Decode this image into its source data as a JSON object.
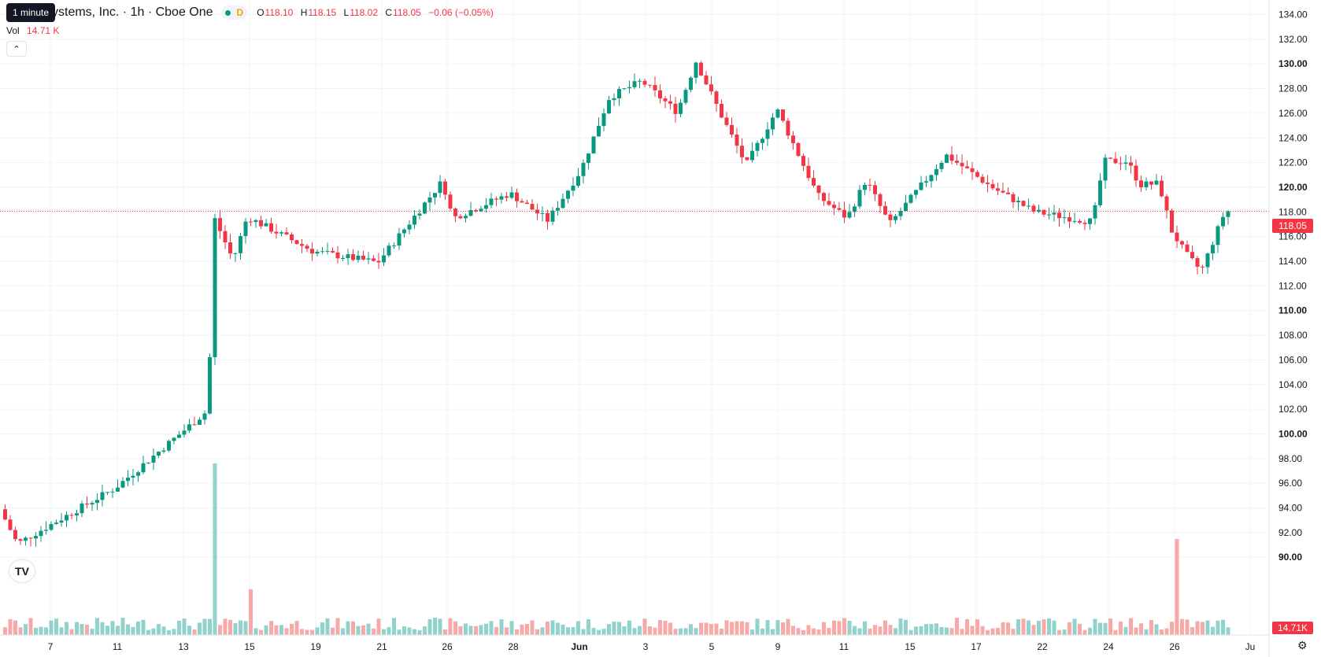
{
  "header": {
    "title": "ystems, Inc. · 1h · Cboe One",
    "tooltip": "1 minute",
    "badge_letter": "D",
    "ohlc": {
      "o_label": "O",
      "o_value": "118.10",
      "h_label": "H",
      "h_value": "118.15",
      "l_label": "L",
      "l_value": "118.02",
      "c_label": "C",
      "c_value": "118.05",
      "change": "−0.06 (−0.05%)"
    },
    "vol_label": "Vol",
    "vol_value": "14.71 K"
  },
  "colors": {
    "up": "#089981",
    "down": "#f23645",
    "up_vol": "#92d2cc",
    "down_vol": "#f7a9a7",
    "grid": "#f0f3fa",
    "text": "#131722"
  },
  "icons": {
    "collapse": "chevron-up-icon",
    "logo": "tradingview-logo-icon",
    "settings": "gear-icon"
  },
  "chart_data": {
    "type": "candlestick",
    "price_axis": {
      "ticks": [
        "134.00",
        "132.00",
        "130.00",
        "128.00",
        "126.00",
        "124.00",
        "122.00",
        "120.00",
        "118.00",
        "116.00",
        "114.00",
        "112.00",
        "110.00",
        "108.00",
        "106.00",
        "104.00",
        "102.00",
        "100.00",
        "98.00",
        "96.00",
        "94.00",
        "92.00",
        "90.00"
      ],
      "bold_ticks": [
        "130.00",
        "120.00",
        "110.00",
        "100.00",
        "90.00"
      ],
      "range": [
        88.8,
        135.2
      ],
      "last_price_label": "118.05",
      "last_price": 118.05,
      "volume_label": "14.71K"
    },
    "time_axis": {
      "labels": [
        "7",
        "11",
        "13",
        "15",
        "19",
        "21",
        "26",
        "28",
        "Jun",
        "3",
        "5",
        "9",
        "11",
        "15",
        "17",
        "22",
        "24",
        "26",
        "Ju"
      ],
      "bold_labels": [
        "Jun"
      ]
    },
    "ohlc_path": [
      [
        "7",
        94.4
      ],
      [
        "8",
        91.1
      ],
      [
        "11",
        95.6
      ],
      [
        "13",
        101.9
      ],
      [
        "14 open",
        117.4
      ],
      [
        "14 low",
        114.1
      ],
      [
        "15",
        117.6
      ],
      [
        "19",
        114.8
      ],
      [
        "21",
        113.9
      ],
      [
        "26",
        120.5
      ],
      [
        "26 dip",
        117.5
      ],
      [
        "28",
        119.5
      ],
      [
        "28 dip",
        117.3
      ],
      [
        "Jun",
        121.4
      ],
      [
        "Jun open",
        127.3
      ],
      [
        "3",
        128.6
      ],
      [
        "4 dip",
        126.1
      ],
      [
        "5 top",
        130.2
      ],
      [
        "5 drop",
        125.6
      ],
      [
        "6",
        121.8
      ],
      [
        "8",
        126.3
      ],
      [
        "9",
        119.3
      ],
      [
        "10",
        117.5
      ],
      [
        "10 bounce",
        120.6
      ],
      [
        "11",
        117.0
      ],
      [
        "13",
        122.6
      ],
      [
        "15",
        120.0
      ],
      [
        "17",
        118.0
      ],
      [
        "17 low",
        117.2
      ],
      [
        "22",
        122.1
      ],
      [
        "24",
        122.1
      ],
      [
        "24 drift",
        120.2
      ],
      [
        "26",
        120.3
      ],
      [
        "26 gap",
        116.5
      ],
      [
        "27",
        114.6
      ],
      [
        "27 low",
        113.2
      ],
      [
        "27 close",
        118.05
      ]
    ]
  }
}
